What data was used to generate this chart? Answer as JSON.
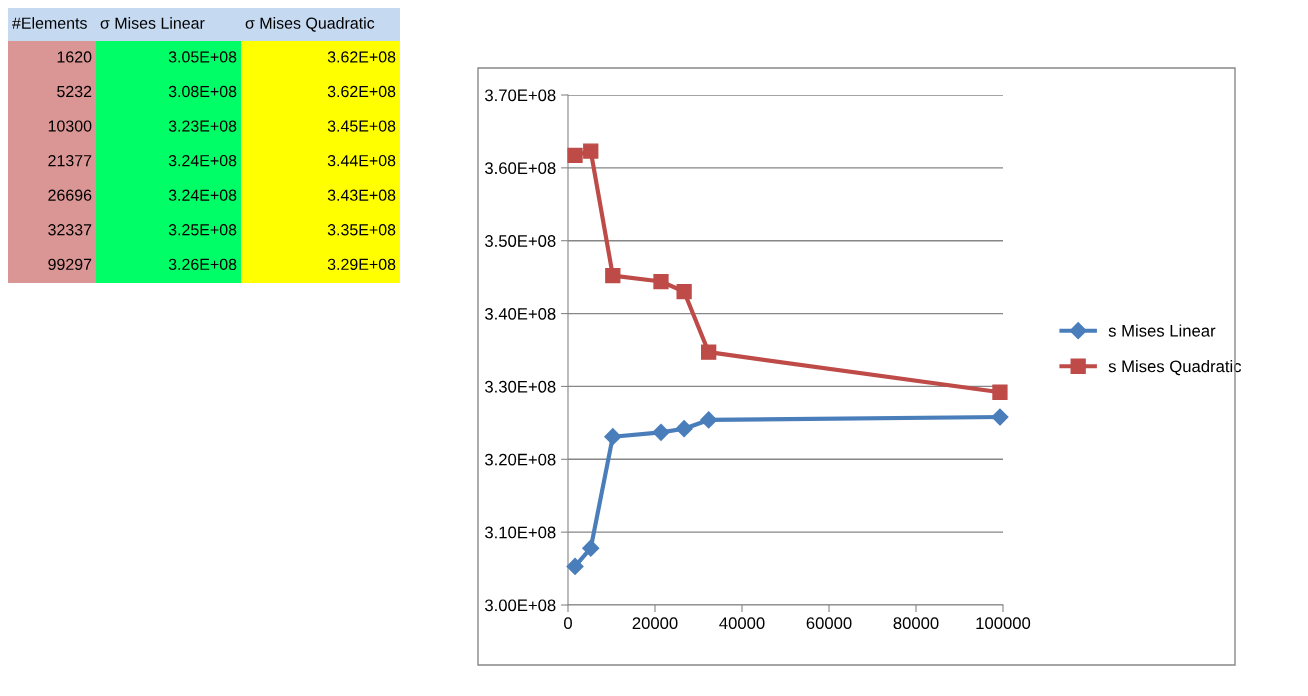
{
  "chart_data": [
    {
      "type": "other",
      "categories": [
        "#Elements",
        "σ Mises Linear",
        "σ Mises Quadratic"
      ],
      "cell_labels": [
        [
          "1620",
          "3.05E+08",
          "3.62E+08"
        ],
        [
          "5232",
          "3.08E+08",
          "3.62E+08"
        ],
        [
          "10300",
          "3.23E+08",
          "3.45E+08"
        ],
        [
          "21377",
          "3.24E+08",
          "3.44E+08"
        ],
        [
          "26696",
          "3.24E+08",
          "3.43E+08"
        ],
        [
          "32337",
          "3.25E+08",
          "3.35E+08"
        ],
        [
          "99297",
          "3.26E+08",
          "3.29E+08"
        ]
      ]
    },
    {
      "type": "line",
      "x": [
        1620,
        5232,
        10300,
        21377,
        26696,
        32337,
        99297
      ],
      "series": [
        {
          "name": "s Mises Linear",
          "color": "#4a7ebb",
          "marker": "diamond",
          "values": [
            305300000,
            307800000,
            323100000,
            323700000,
            324200000,
            325400000,
            325800000
          ]
        },
        {
          "name": "s Mises Quadratic",
          "color": "#be4b48",
          "marker": "square",
          "values": [
            361700000,
            362300000,
            345200000,
            344400000,
            343000000,
            334700000,
            329200000
          ]
        }
      ],
      "xlim": [
        0,
        100000
      ],
      "xticks": [
        0,
        20000,
        40000,
        60000,
        80000,
        100000
      ],
      "ylim": [
        300000000,
        370000000
      ],
      "yticks": [
        {
          "value": 300000000,
          "label": "3.00E+08"
        },
        {
          "value": 310000000,
          "label": "3.10E+08"
        },
        {
          "value": 320000000,
          "label": "3.20E+08"
        },
        {
          "value": 330000000,
          "label": "3.30E+08"
        },
        {
          "value": 340000000,
          "label": "3.40E+08"
        },
        {
          "value": 350000000,
          "label": "3.50E+08"
        },
        {
          "value": 360000000,
          "label": "3.60E+08"
        },
        {
          "value": 370000000,
          "label": "3.70E+08"
        }
      ],
      "grid": "y",
      "legend": "right",
      "line_style": "solid"
    }
  ]
}
